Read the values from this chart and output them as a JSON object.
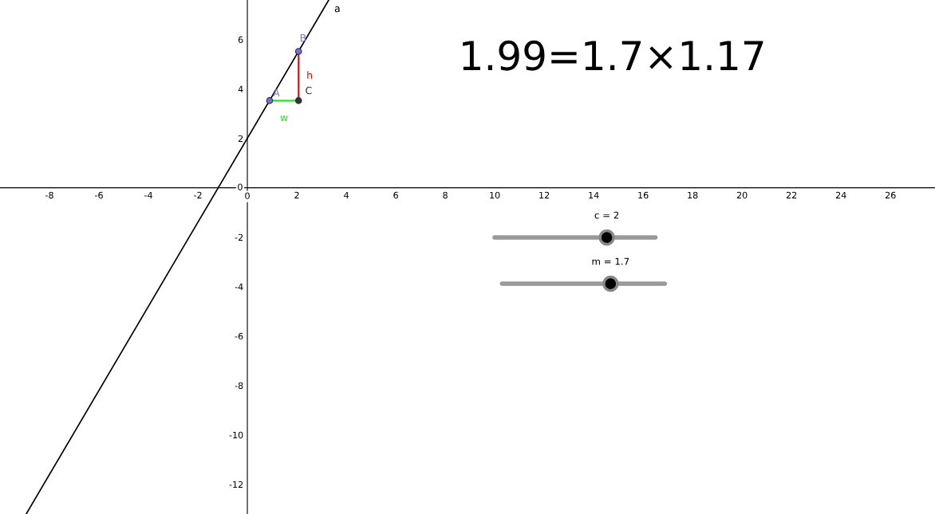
{
  "chart_data": {
    "type": "line",
    "xlim": [
      -10,
      27.8
    ],
    "ylim": [
      -13.2,
      7.6
    ],
    "xticks": [
      -8,
      -6,
      -4,
      -2,
      0,
      2,
      4,
      6,
      8,
      10,
      12,
      14,
      16,
      18,
      20,
      22,
      24,
      26
    ],
    "yticks": [
      -12,
      -10,
      -8,
      -6,
      -4,
      -2,
      0,
      2,
      4,
      6
    ],
    "grid": false,
    "legend": false,
    "series": [
      {
        "name": "a",
        "type": "line",
        "color": "#000000",
        "x": [
          -8.94,
          3.29
        ],
        "values": [
          -13.2,
          7.6
        ]
      },
      {
        "name": "w",
        "type": "line",
        "color": "#00ff00",
        "x": [
          0.9,
          2.07
        ],
        "values": [
          3.53,
          3.53
        ]
      },
      {
        "name": "h",
        "type": "line",
        "color": "#ff0000",
        "x": [
          2.07,
          2.07
        ],
        "values": [
          3.53,
          5.52
        ]
      },
      {
        "name": "A",
        "type": "scatter",
        "marker": "circle",
        "color": "#7070e0",
        "x": [
          0.9
        ],
        "values": [
          3.53
        ]
      },
      {
        "name": "B",
        "type": "scatter",
        "marker": "circle",
        "color": "#7070e0",
        "x": [
          2.07
        ],
        "values": [
          5.52
        ]
      },
      {
        "name": "C",
        "type": "scatter",
        "marker": "circle",
        "color": "#333333",
        "x": [
          2.07
        ],
        "values": [
          3.53
        ]
      }
    ],
    "annotations": [
      "1.99=1.7×1.17",
      "c = 2",
      "m = 1.7"
    ]
  }
}
